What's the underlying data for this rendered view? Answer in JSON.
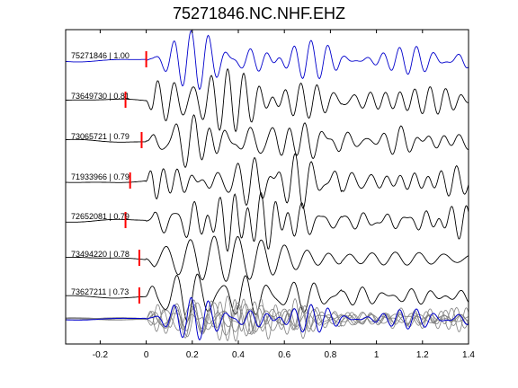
{
  "chart_data": {
    "type": "line",
    "title": "75271846.NC.NHF.EHZ",
    "xlabel": "",
    "ylabel": "",
    "xlim": [
      -0.35,
      1.4
    ],
    "xticks": [
      -0.2,
      0,
      0.2,
      0.4,
      0.6,
      0.8,
      1,
      1.2,
      1.4
    ],
    "xtick_labels": [
      "-0.2",
      "0",
      "0.2",
      "0.4",
      "0.6",
      "0.8",
      "1",
      "1.2",
      "1.4"
    ],
    "grid": false,
    "legend": "none",
    "colors": {
      "master": "#0000cc",
      "trace": "#000000",
      "stack": "#808080",
      "pick": "#ff0000"
    },
    "traces": [
      {
        "id": "75271846",
        "cc": "1.00",
        "label": "75271846 | 1.00",
        "pick_time": 0.0,
        "color": "#0000cc"
      },
      {
        "id": "73649730",
        "cc": "0.81",
        "label": "73649730 | 0.81",
        "pick_time": -0.09,
        "color": "#000000"
      },
      {
        "id": "73065721",
        "cc": "0.79",
        "label": "73065721 | 0.79",
        "pick_time": -0.02,
        "color": "#000000"
      },
      {
        "id": "71933966",
        "cc": "0.79",
        "label": "71933966 | 0.79",
        "pick_time": -0.07,
        "color": "#000000"
      },
      {
        "id": "72652081",
        "cc": "0.79",
        "label": "72652081 | 0.79",
        "pick_time": -0.09,
        "color": "#000000"
      },
      {
        "id": "73494220",
        "cc": "0.78",
        "label": "73494220 | 0.78",
        "pick_time": -0.03,
        "color": "#000000"
      },
      {
        "id": "73627211",
        "cc": "0.73",
        "label": "73627211 | 0.73",
        "pick_time": -0.03,
        "color": "#000000"
      }
    ]
  }
}
